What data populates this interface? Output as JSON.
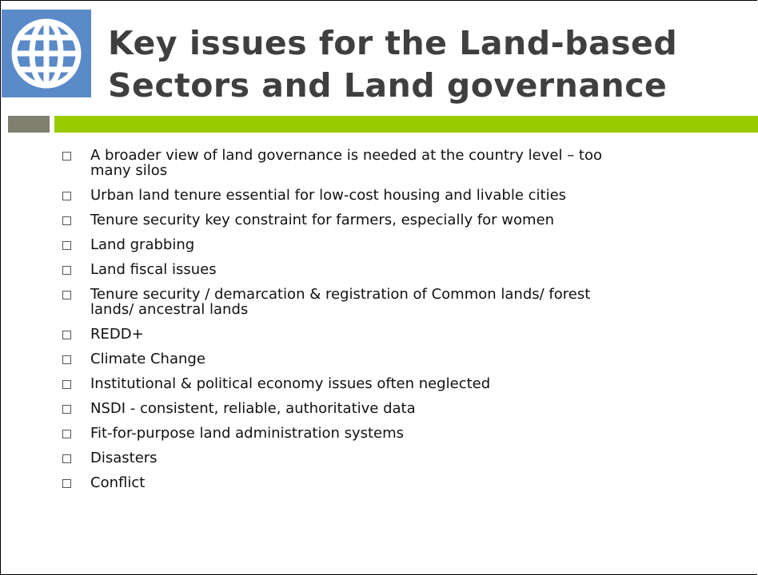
{
  "header": {
    "title_lines": [
      "Key issues for the Land-based",
      "Sectors and Land governance"
    ]
  },
  "bullets": [
    [
      "A broader view of land governance is needed at the country level – too",
      "many silos"
    ],
    [
      "Urban land tenure essential for low-cost housing and livable cities"
    ],
    [
      "Tenure security key constraint for farmers, especially for women"
    ],
    [
      "Land grabbing"
    ],
    [
      "Land fiscal issues"
    ],
    [
      "Tenure security / demarcation & registration of Common lands/ forest",
      "lands/ ancestral lands"
    ],
    [
      "REDD+"
    ],
    [
      "Climate Change"
    ],
    [
      "Institutional & political economy issues often neglected"
    ],
    [
      "NSDI  - consistent, reliable, authoritative data"
    ],
    [
      "Fit-for-purpose land administration systems"
    ],
    [
      "Disasters"
    ],
    [
      "Conflict"
    ]
  ]
}
